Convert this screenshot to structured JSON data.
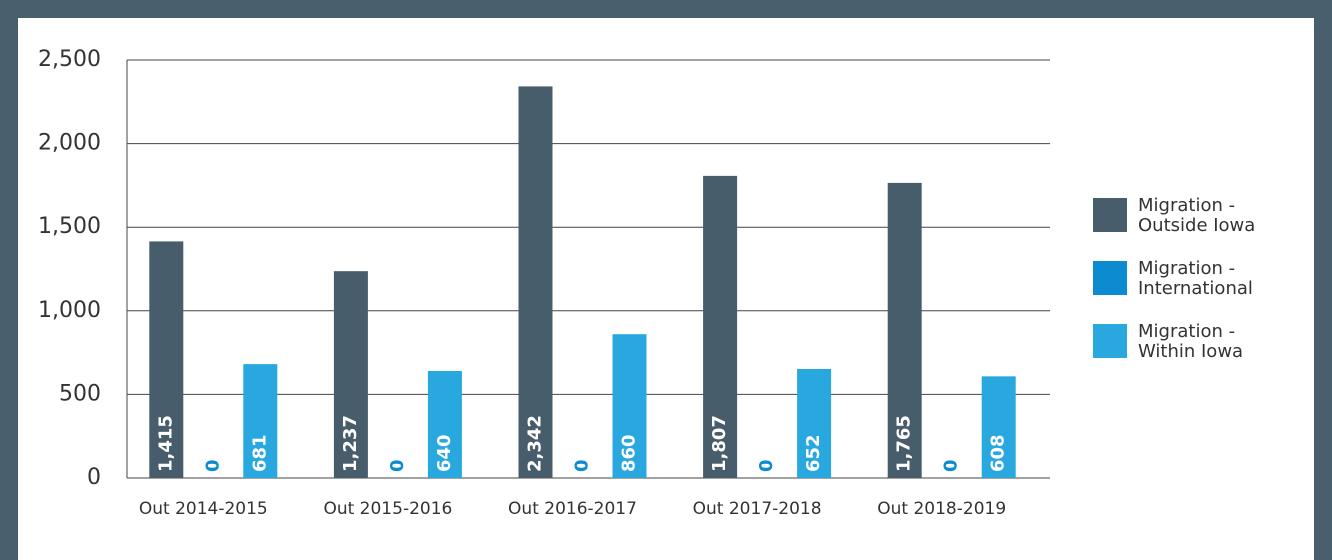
{
  "chart_data": {
    "type": "bar",
    "categories": [
      "Out 2014-2015",
      "Out 2015-2016",
      "Out 2016-2017",
      "Out 2017-2018",
      "Out 2018-2019"
    ],
    "series": [
      {
        "name": "Migration - Outside Iowa",
        "color": "#485d6b",
        "values": [
          1415,
          1237,
          2342,
          1807,
          1765
        ],
        "value_labels": [
          "1,415",
          "1,237",
          "2,342",
          "1,807",
          "1,765"
        ]
      },
      {
        "name": "Migration - International",
        "color": "#0c8bd1",
        "values": [
          0,
          0,
          0,
          0,
          0
        ]
      },
      {
        "name": "Migration - Within Iowa",
        "color": "#29a8e0",
        "values": [
          681,
          640,
          860,
          652,
          608
        ]
      }
    ],
    "ylim": [
      0,
      2500
    ],
    "yticks": [
      0,
      500,
      {
        "value": 1000,
        "label": "1,000"
      },
      {
        "value": 1500,
        "label": "1,500"
      },
      {
        "value": 2000,
        "label": "2,000"
      },
      {
        "value": 2500,
        "label": "2,500"
      }
    ],
    "grid": true,
    "legend": "right"
  }
}
